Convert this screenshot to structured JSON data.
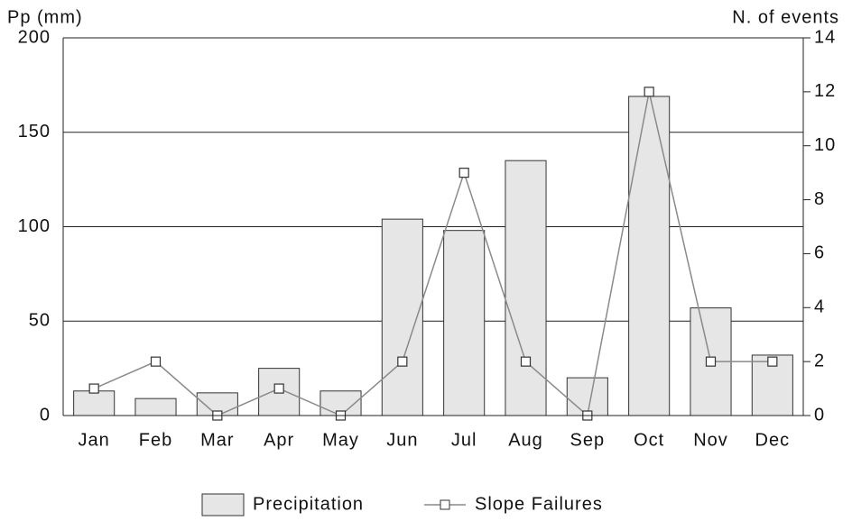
{
  "chart_data": {
    "type": "bar",
    "y_label": "Pp (mm)",
    "y2_label": "N. of events",
    "categories": [
      "Jan",
      "Feb",
      "Mar",
      "Apr",
      "May",
      "Jun",
      "Jul",
      "Aug",
      "Sep",
      "Oct",
      "Nov",
      "Dec"
    ],
    "series": [
      {
        "name": "Precipitation",
        "type": "bar",
        "color": "#e6e6e6",
        "values": [
          13,
          9,
          12,
          25,
          13,
          104,
          98,
          135,
          20,
          169,
          57,
          32
        ]
      },
      {
        "name": "Slope Failures",
        "type": "line",
        "axis": "y2",
        "color": "#8a8a8a",
        "values": [
          1,
          2,
          0,
          1,
          0,
          2,
          9,
          2,
          0,
          12,
          2,
          2
        ]
      }
    ],
    "ylim": [
      0,
      200
    ],
    "yticks": [
      0,
      50,
      100,
      150,
      200
    ],
    "y2lim": [
      0,
      14
    ],
    "y2ticks": [
      0,
      2,
      4,
      6,
      8,
      10,
      12,
      14
    ],
    "grid": true
  }
}
